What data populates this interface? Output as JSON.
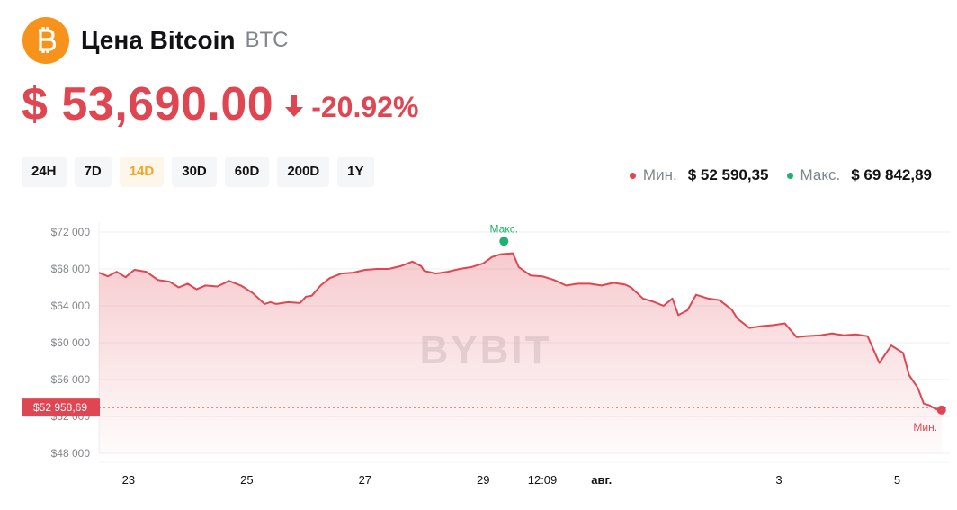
{
  "header": {
    "logo_icon": "bitcoin-icon",
    "title": "Цена Bitcoin",
    "ticker": "BTC"
  },
  "price": {
    "value": "$ 53,690.00",
    "direction_icon": "arrow-down-icon",
    "change": "-20.92%",
    "color": "#e04651"
  },
  "ranges": [
    {
      "label": "24H",
      "active": false
    },
    {
      "label": "7D",
      "active": false
    },
    {
      "label": "14D",
      "active": true
    },
    {
      "label": "30D",
      "active": false
    },
    {
      "label": "60D",
      "active": false
    },
    {
      "label": "200D",
      "active": false
    },
    {
      "label": "1Y",
      "active": false
    }
  ],
  "stats": {
    "min_label": "Мин.",
    "min_value": "$ 52 590,35",
    "max_label": "Макс.",
    "max_value": "$ 69 842,89",
    "min_color": "#e04651",
    "max_color": "#20b26c"
  },
  "watermark": "BYBIT",
  "chart_data": {
    "type": "area",
    "title": "",
    "xlabel": "",
    "ylabel": "",
    "ylim": [
      47000,
      73000
    ],
    "xlim": [
      0,
      14.33
    ],
    "ytick_values": [
      48000,
      52000,
      56000,
      60000,
      64000,
      68000,
      72000
    ],
    "ytick_labels": [
      "$48 000",
      "$52 000",
      "$56 000",
      "$60 000",
      "$64 000",
      "$68 000",
      "$72 000"
    ],
    "xtick_values": [
      0.5,
      2.5,
      4.5,
      6.5,
      7.5,
      8.5,
      11.5,
      13.5
    ],
    "xtick_labels": [
      "23",
      "25",
      "27",
      "29",
      "12:09",
      "авг.",
      "3",
      "5"
    ],
    "current_value": 52958.69,
    "current_label": "$52 958,69",
    "max_marker": {
      "x": 6.85,
      "y": 71000,
      "label": "Макс."
    },
    "min_marker": {
      "x": 14.25,
      "y": 52700,
      "label": "Мин."
    },
    "line_color": "#e04651",
    "series": [
      {
        "x": [
          0,
          0.15,
          0.3,
          0.45,
          0.6,
          0.8,
          1.0,
          1.2,
          1.35,
          1.5,
          1.65,
          1.8,
          2.0,
          2.2,
          2.4,
          2.6,
          2.8,
          2.9,
          3.0,
          3.2,
          3.4,
          3.5,
          3.6,
          3.75,
          3.9,
          4.1,
          4.3,
          4.5,
          4.7,
          4.9,
          5.1,
          5.3,
          5.45,
          5.5,
          5.7,
          5.9,
          6.1,
          6.3,
          6.5,
          6.65,
          6.8,
          7.0,
          7.1,
          7.3,
          7.5,
          7.7,
          7.9,
          8.1,
          8.3,
          8.5,
          8.7,
          8.9,
          9.0,
          9.2,
          9.4,
          9.55,
          9.7,
          9.8,
          9.95,
          10.1,
          10.3,
          10.5,
          10.7,
          10.8,
          11.0,
          11.2,
          11.4,
          11.6,
          11.8,
          11.95,
          12.2,
          12.4,
          12.6,
          12.8,
          13.0,
          13.2,
          13.4,
          13.6,
          13.7,
          13.85,
          13.95,
          14.05,
          14.15,
          14.25
        ],
        "y": [
          67600,
          67200,
          67700,
          67100,
          67900,
          67700,
          66800,
          66600,
          66000,
          66400,
          65800,
          66200,
          66100,
          66700,
          66200,
          65400,
          64200,
          64400,
          64200,
          64400,
          64300,
          65000,
          65100,
          66200,
          67000,
          67500,
          67600,
          67900,
          68000,
          68000,
          68300,
          68800,
          68300,
          67800,
          67500,
          67700,
          68000,
          68200,
          68600,
          69300,
          69600,
          69700,
          68200,
          67300,
          67200,
          66800,
          66200,
          66400,
          66400,
          66200,
          66500,
          66300,
          66000,
          64800,
          64400,
          64000,
          64800,
          63000,
          63500,
          65200,
          64800,
          64600,
          63600,
          62600,
          61600,
          61800,
          61900,
          62100,
          60600,
          60700,
          60800,
          61000,
          60800,
          60900,
          60700,
          57800,
          59700,
          58900,
          56500,
          55100,
          53400,
          53200,
          52800,
          52700
        ]
      }
    ]
  }
}
